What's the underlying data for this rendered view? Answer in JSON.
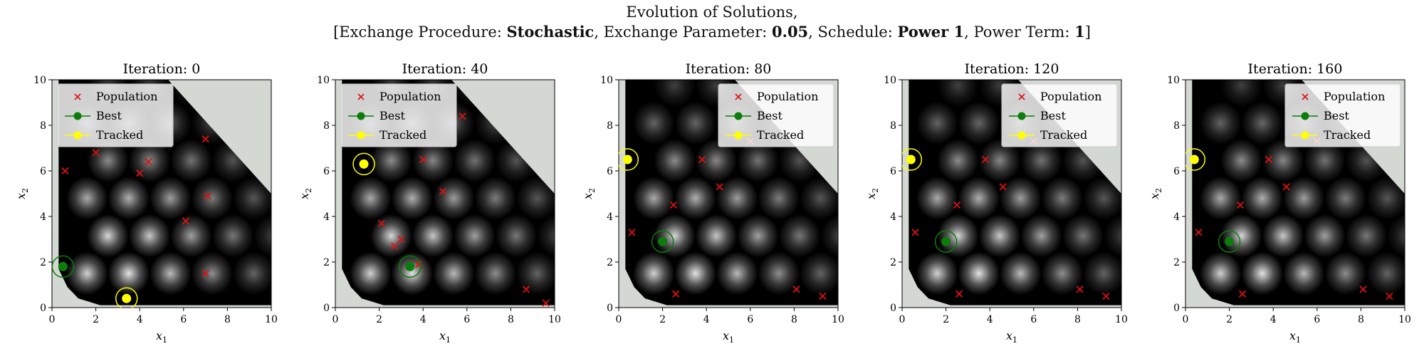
{
  "figure": {
    "title_line1": "Evolution of Solutions,",
    "subtitle": {
      "p1": "[Exchange Procedure: ",
      "procedure": "Stochastic",
      "p2": ", Exchange Parameter: ",
      "parameter": "0.05",
      "p3": ", Schedule: ",
      "schedule": "Power 1",
      "p4": ", Power Term: ",
      "power_term": "1",
      "p5": "]"
    }
  },
  "colors": {
    "background_region": "#d3d8d3",
    "population": "#dd1111",
    "best": "#0a7d0a",
    "tracked": "#ffff00"
  },
  "chart_data": [
    {
      "type": "scatter",
      "title": "Iteration:  0",
      "xlabel": "x1",
      "ylabel": "x2",
      "xlim": [
        0,
        10
      ],
      "ylim": [
        0,
        10
      ],
      "xticks": [
        "0",
        "2",
        "4",
        "6",
        "8",
        "10"
      ],
      "yticks": [
        "0",
        "2",
        "4",
        "6",
        "8",
        "10"
      ],
      "legend_position": "top-left",
      "legend": [
        "Population",
        "Best",
        "Tracked"
      ],
      "population": [
        [
          0.6,
          6.0
        ],
        [
          2.0,
          6.8
        ],
        [
          4.0,
          5.9
        ],
        [
          4.4,
          6.4
        ],
        [
          7.0,
          7.4
        ],
        [
          7.1,
          4.9
        ],
        [
          6.1,
          3.8
        ],
        [
          7.0,
          1.5
        ],
        [
          0.5,
          1.8
        ],
        [
          3.4,
          0.4
        ]
      ],
      "best": [
        0.5,
        1.8
      ],
      "tracked": [
        3.4,
        0.4
      ]
    },
    {
      "type": "scatter",
      "title": "Iteration:  40",
      "xlabel": "x1",
      "ylabel": "x2",
      "xlim": [
        0,
        10
      ],
      "ylim": [
        0,
        10
      ],
      "xticks": [
        "0",
        "2",
        "4",
        "6",
        "8",
        "10"
      ],
      "yticks": [
        "0",
        "2",
        "4",
        "6",
        "8",
        "10"
      ],
      "legend_position": "top-left",
      "legend": [
        "Population",
        "Best",
        "Tracked"
      ],
      "population": [
        [
          5.8,
          8.4
        ],
        [
          4.0,
          6.5
        ],
        [
          4.9,
          5.1
        ],
        [
          2.1,
          3.7
        ],
        [
          3.0,
          3.0
        ],
        [
          2.7,
          2.7
        ],
        [
          3.8,
          1.9
        ],
        [
          3.4,
          1.8
        ],
        [
          8.7,
          0.8
        ],
        [
          9.6,
          0.2
        ],
        [
          1.3,
          6.3
        ]
      ],
      "best": [
        3.4,
        1.8
      ],
      "tracked": [
        1.3,
        6.3
      ]
    },
    {
      "type": "scatter",
      "title": "Iteration:  80",
      "xlabel": "x1",
      "ylabel": "x2",
      "xlim": [
        0,
        10
      ],
      "ylim": [
        0,
        10
      ],
      "xticks": [
        "0",
        "2",
        "4",
        "6",
        "8",
        "10"
      ],
      "yticks": [
        "0",
        "2",
        "4",
        "6",
        "8",
        "10"
      ],
      "legend_position": "top-right",
      "legend": [
        "Population",
        "Best",
        "Tracked"
      ],
      "population": [
        [
          3.8,
          6.5
        ],
        [
          4.6,
          5.3
        ],
        [
          2.5,
          4.5
        ],
        [
          0.6,
          3.3
        ],
        [
          2.6,
          0.6
        ],
        [
          8.1,
          0.8
        ],
        [
          9.3,
          0.5
        ],
        [
          6.0,
          7.3
        ],
        [
          2.0,
          2.9
        ],
        [
          0.4,
          6.5
        ]
      ],
      "best": [
        2.0,
        2.9
      ],
      "tracked": [
        0.4,
        6.5
      ]
    },
    {
      "type": "scatter",
      "title": "Iteration:  120",
      "xlabel": "x1",
      "ylabel": "x2",
      "xlim": [
        0,
        10
      ],
      "ylim": [
        0,
        10
      ],
      "xticks": [
        "0",
        "2",
        "4",
        "6",
        "8",
        "10"
      ],
      "yticks": [
        "0",
        "2",
        "4",
        "6",
        "8",
        "10"
      ],
      "legend_position": "top-right",
      "legend": [
        "Population",
        "Best",
        "Tracked"
      ],
      "population": [
        [
          3.8,
          6.5
        ],
        [
          4.6,
          5.3
        ],
        [
          2.5,
          4.5
        ],
        [
          0.6,
          3.3
        ],
        [
          2.6,
          0.6
        ],
        [
          8.1,
          0.8
        ],
        [
          9.3,
          0.5
        ],
        [
          6.0,
          7.3
        ],
        [
          2.0,
          2.9
        ],
        [
          0.4,
          6.5
        ]
      ],
      "best": [
        2.0,
        2.9
      ],
      "tracked": [
        0.4,
        6.5
      ]
    },
    {
      "type": "scatter",
      "title": "Iteration:  160",
      "xlabel": "x1",
      "ylabel": "x2",
      "xlim": [
        0,
        10
      ],
      "ylim": [
        0,
        10
      ],
      "xticks": [
        "0",
        "2",
        "4",
        "6",
        "8",
        "10"
      ],
      "yticks": [
        "0",
        "2",
        "4",
        "6",
        "8",
        "10"
      ],
      "legend_position": "top-right",
      "legend": [
        "Population",
        "Best",
        "Tracked"
      ],
      "population": [
        [
          3.8,
          6.5
        ],
        [
          4.6,
          5.3
        ],
        [
          2.5,
          4.5
        ],
        [
          0.6,
          3.3
        ],
        [
          2.6,
          0.6
        ],
        [
          8.1,
          0.8
        ],
        [
          9.3,
          0.5
        ],
        [
          6.0,
          7.3
        ],
        [
          2.0,
          2.9
        ],
        [
          0.4,
          6.5
        ]
      ],
      "best": [
        2.0,
        2.9
      ],
      "tracked": [
        0.4,
        6.5
      ]
    }
  ]
}
